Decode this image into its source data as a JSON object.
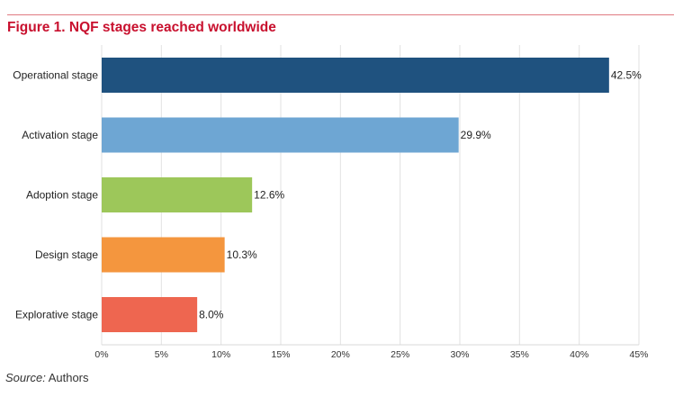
{
  "chart_data": {
    "type": "bar",
    "orientation": "horizontal",
    "title": "Figure 1. NQF stages reached worldwide",
    "categories": [
      "Operational stage",
      "Activation stage",
      "Adoption stage",
      "Design stage",
      "Explorative stage"
    ],
    "values": [
      42.5,
      29.9,
      12.6,
      10.3,
      8.0
    ],
    "data_labels": [
      "42.5%",
      "29.9%",
      "12.6%",
      "10.3%",
      "8.0%"
    ],
    "colors": [
      "#1f527f",
      "#6ea6d3",
      "#9dc75a",
      "#f4963e",
      "#ee6650"
    ],
    "xticks": [
      "0%",
      "5%",
      "10%",
      "15%",
      "20%",
      "25%",
      "30%",
      "35%",
      "40%",
      "45%"
    ],
    "xlim": [
      0,
      45
    ],
    "grid": true,
    "xlabel": "",
    "ylabel": ""
  },
  "source": {
    "label": "Source:",
    "text": " Authors"
  },
  "colors": {
    "title": "#c8102e",
    "rule": "#e07a82"
  }
}
